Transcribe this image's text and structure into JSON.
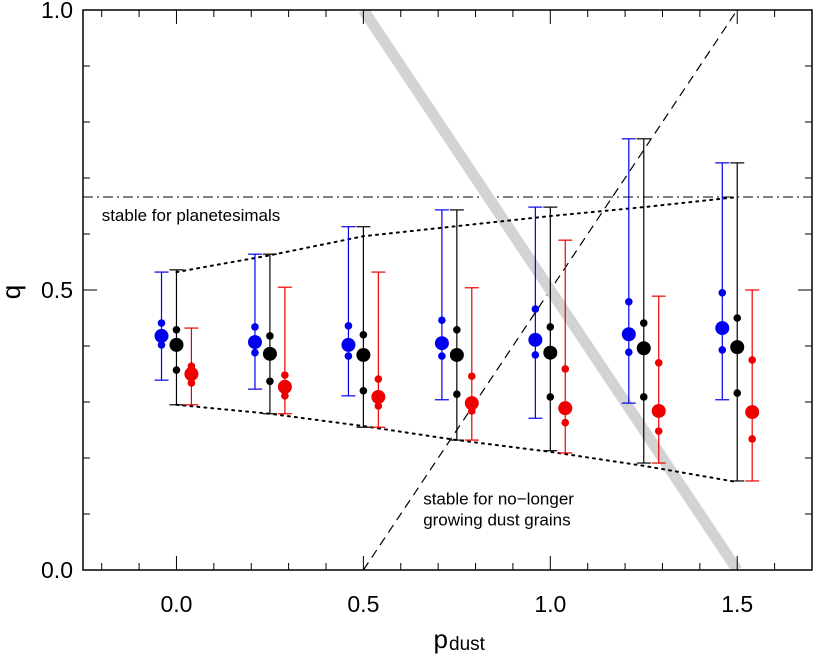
{
  "chart_data": {
    "type": "errorbar",
    "xlabel": {
      "main": "p",
      "sub": "dust"
    },
    "ylabel": "q",
    "xlim": [
      -0.25,
      1.7
    ],
    "ylim": [
      0,
      1
    ],
    "xticks": [
      {
        "value": 0,
        "label": "0.0"
      },
      0.5,
      {
        "value": 1,
        "label": "1.0"
      },
      1.5
    ],
    "yticks": [
      {
        "value": 0,
        "label": "0.0"
      },
      0.5,
      {
        "value": 1,
        "label": "1.0"
      }
    ],
    "xminorticks": [
      -0.2,
      -0.1,
      0.1,
      0.2,
      0.3,
      0.4,
      0.6,
      0.7,
      0.8,
      0.9,
      1.1,
      1.2,
      1.3,
      1.4,
      1.6
    ],
    "yminorticks": [
      0.1,
      0.2,
      0.3,
      0.4,
      0.6,
      0.7,
      0.8,
      0.9
    ],
    "series": [
      {
        "color": "#0000ee",
        "x": [
          -0.04,
          0.21,
          0.46,
          0.71,
          0.96,
          1.21,
          1.46
        ],
        "values": [
          0.418,
          0.407,
          0.402,
          0.405,
          0.411,
          0.421,
          0.432
        ],
        "q_high": [
          0.441,
          0.434,
          0.436,
          0.446,
          0.466,
          0.479,
          0.495
        ],
        "q_low": [
          0.402,
          0.388,
          0.382,
          0.382,
          0.384,
          0.389,
          0.393
        ],
        "err_high": [
          0.532,
          0.564,
          0.613,
          0.643,
          0.648,
          0.77,
          0.727
        ],
        "err_low": [
          0.339,
          0.323,
          0.311,
          0.304,
          0.271,
          0.298,
          0.304
        ]
      },
      {
        "color": "#000000",
        "x": [
          0,
          0.25,
          0.5,
          0.75,
          1.0,
          1.25,
          1.5
        ],
        "values": [
          0.402,
          0.386,
          0.384,
          0.384,
          0.388,
          0.396,
          0.398
        ],
        "q_high": [
          0.429,
          0.418,
          0.42,
          0.429,
          0.434,
          0.441,
          0.45
        ],
        "q_low": [
          0.357,
          0.337,
          0.32,
          0.314,
          0.309,
          0.309,
          0.316
        ],
        "err_high": [
          0.536,
          0.564,
          0.613,
          0.643,
          0.648,
          0.77,
          0.727
        ],
        "err_low": [
          0.295,
          0.279,
          0.255,
          0.232,
          0.213,
          0.191,
          0.159
        ]
      },
      {
        "color": "#ee0000",
        "x": [
          0.04,
          0.29,
          0.54,
          0.79,
          1.04,
          1.29,
          1.54
        ],
        "values": [
          0.35,
          0.327,
          0.309,
          0.298,
          0.289,
          0.284,
          0.282
        ],
        "q_high": [
          0.364,
          0.348,
          0.341,
          0.346,
          0.359,
          0.37,
          0.375
        ],
        "q_low": [
          0.334,
          0.311,
          0.293,
          0.284,
          0.263,
          0.248,
          0.234
        ],
        "err_high": [
          0.432,
          0.505,
          0.532,
          0.504,
          0.589,
          0.489,
          0.5
        ],
        "err_low": [
          0.295,
          0.279,
          0.255,
          0.232,
          0.209,
          0.191,
          0.159
        ]
      }
    ],
    "lines": [
      {
        "style": "dashdot",
        "color": "#000000",
        "width": 1,
        "x": [
          -0.25,
          1.7
        ],
        "y": [
          0.666,
          0.666
        ]
      },
      {
        "style": "dashed",
        "color": "#000000",
        "width": 1.2,
        "x": [
          0.5,
          1.5
        ],
        "y": [
          0,
          1
        ]
      },
      {
        "style": "solid",
        "color": "#d3d3d3",
        "width": 11,
        "x": [
          0.5,
          1.5
        ],
        "y": [
          1,
          0
        ]
      },
      {
        "style": "dotted",
        "color": "#000000",
        "width": 2,
        "x": [
          0,
          0.25,
          0.5,
          0.75,
          1.0,
          1.25,
          1.5
        ],
        "y": [
          0.532,
          0.562,
          0.596,
          0.614,
          0.632,
          0.648,
          0.666
        ]
      },
      {
        "style": "dotted",
        "color": "#000000",
        "width": 2,
        "x": [
          0,
          0.25,
          0.5,
          0.75,
          1.0,
          1.25,
          1.5
        ],
        "y": [
          0.295,
          0.279,
          0.257,
          0.232,
          0.211,
          0.186,
          0.157
        ]
      }
    ],
    "annotations": [
      {
        "lines": [
          "stable for planetesimals"
        ],
        "x": -0.2,
        "y": 0.623
      },
      {
        "lines": [
          "stable for no−longer",
          "growing dust grains"
        ],
        "x": 0.66,
        "y": 0.117
      }
    ]
  }
}
